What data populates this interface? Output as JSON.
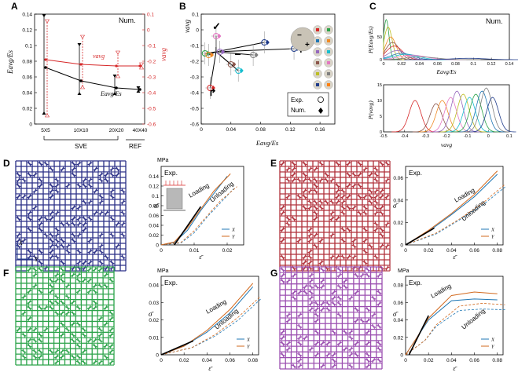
{
  "panels": {
    "A": {
      "letter": "A",
      "legend": "Num.",
      "y_left_label": "Eavg/Es",
      "y_right_label": "νavg",
      "series_labels": {
        "nu": "νavg",
        "e": "Eavg/Es"
      },
      "x_ticks": [
        "5X5",
        "10X10",
        "20X20",
        "40X40"
      ],
      "group_labels": [
        "SVE",
        "REF"
      ],
      "y_left_ticks": [
        "0",
        "0.02",
        "0.04",
        "0.06",
        "0.08",
        "0.1",
        "0.12",
        "0.14"
      ],
      "y_right_ticks": [
        "-0.6",
        "-0.5",
        "-0.4",
        "-0.3",
        "-0.2",
        "-0.1",
        "0",
        "0.1"
      ],
      "colors": {
        "e": "#000000",
        "nu": "#d62728"
      }
    },
    "B": {
      "letter": "B",
      "y_label": "νavg",
      "x_label": "Eavg/Es",
      "legend_exp": "Exp.",
      "legend_num": "Num.",
      "x_ticks": [
        "0",
        "0.04",
        "0.08",
        "0.12",
        "0.16"
      ],
      "y_ticks": [
        "-0.6",
        "-0.5",
        "-0.4",
        "-0.3",
        "-0.2",
        "-0.1",
        "0",
        "0.1"
      ]
    },
    "C": {
      "letter": "C",
      "legend": "Num.",
      "top_y_label": "P(Eavg/Es)",
      "top_x_label": "Eavg/Es",
      "top_x_ticks": [
        "0",
        "0.02",
        "0.04",
        "0.06",
        "0.08",
        "0.1",
        "0.12",
        "0.14"
      ],
      "top_y_ticks": [
        "0",
        "50"
      ],
      "bottom_y_label": "P(νavg)",
      "bottom_x_label": "νavg",
      "bottom_x_ticks": [
        "-0.5",
        "-0.4",
        "-0.3",
        "-0.2",
        "-0.1",
        "0",
        "0.1"
      ],
      "bottom_y_ticks": [
        "0",
        "5",
        "10",
        "15"
      ]
    },
    "D": {
      "letter": "D",
      "unit": "MPa",
      "legend": "Exp.",
      "y_label": "σ̄",
      "x_label": "ε̄",
      "loading": "Loading",
      "unloading": "Unloading",
      "x_ticks": [
        "0",
        "0.01",
        "0.02"
      ],
      "y_ticks": [
        "0",
        "0.02",
        "0.04",
        "0.06",
        "0.08",
        "0.1",
        "0.12",
        "0.14"
      ],
      "series": [
        "X",
        "Y"
      ],
      "axis_x": "X",
      "axis_y": "Y",
      "lattice_color": "#2a2f86"
    },
    "E": {
      "letter": "E",
      "legend": "Exp.",
      "y_label": "σ̄",
      "x_label": "ε̄",
      "loading": "Loading",
      "unloading": "Unloading",
      "x_ticks": [
        "0",
        "0.02",
        "0.04",
        "0.06",
        "0.08"
      ],
      "y_ticks": [
        "0",
        "0.02",
        "0.04",
        "0.06"
      ],
      "series": [
        "X",
        "Y"
      ],
      "lattice_color": "#b0303a"
    },
    "F": {
      "letter": "F",
      "unit": "MPa",
      "legend": "Exp.",
      "y_label": "σ̄",
      "x_label": "ε̄",
      "loading": "Loading",
      "unloading": "Unloading",
      "x_ticks": [
        "0",
        "0.02",
        "0.04",
        "0.06",
        "0.08"
      ],
      "y_ticks": [
        "0",
        "0.01",
        "0.02",
        "0.03",
        "0.04"
      ],
      "series": [
        "X",
        "Y"
      ],
      "lattice_color": "#2ca34a"
    },
    "G": {
      "letter": "G",
      "unit": "MPa",
      "legend": "Exp.",
      "y_label": "σ̄",
      "x_label": "ε̄",
      "loading": "Loading",
      "unloading": "Unloading",
      "x_ticks": [
        "0",
        "0.02",
        "0.04",
        "0.06",
        "0.08"
      ],
      "y_ticks": [
        "0",
        "0.02",
        "0.04",
        "0.06",
        "0.08"
      ],
      "series": [
        "X",
        "Y"
      ],
      "lattice_color": "#9b4fb0"
    }
  },
  "chart_data": [
    {
      "id": "A",
      "type": "line",
      "categories": [
        "5X5",
        "10X10",
        "20X20",
        "40X40"
      ],
      "series": [
        {
          "name": "Eavg/Es",
          "axis": "left",
          "values": [
            0.072,
            0.055,
            0.046,
            0.044
          ],
          "err_low": [
            0.015,
            0.04,
            0.04,
            0.043
          ],
          "err_high": [
            0.137,
            0.1,
            0.06,
            0.045
          ]
        },
        {
          "name": "νavg",
          "axis": "right",
          "values": [
            -0.19,
            -0.22,
            -0.23,
            -0.23
          ],
          "err_low": [
            -0.54,
            -0.36,
            -0.29,
            -0.235
          ],
          "err_high": [
            0.05,
            -0.05,
            -0.15,
            -0.225
          ]
        }
      ],
      "ylim_left": [
        0,
        0.14
      ],
      "ylim_right": [
        -0.6,
        0.1
      ]
    },
    {
      "id": "B",
      "type": "scatter",
      "x": [
        0.005,
        0.01,
        0.012,
        0.02,
        0.025,
        0.04,
        0.05,
        0.07,
        0.085,
        0.125
      ],
      "y": [
        -0.15,
        -0.16,
        -0.37,
        -0.04,
        -0.14,
        -0.22,
        -0.26,
        -0.16,
        -0.08,
        -0.12
      ],
      "colors": [
        "#2ca34a",
        "#f08a24",
        "#d62728",
        "#e377c2",
        "#9467bd",
        "#8c564b",
        "#17becf",
        "#7f7f7f",
        "#1f3b8a",
        "#1f3b8a"
      ],
      "xlim": [
        0,
        0.18
      ],
      "ylim": [
        -0.6,
        0.1
      ]
    },
    {
      "id": "C-top",
      "type": "line",
      "peaks_x": [
        0.003,
        0.005,
        0.008,
        0.01,
        0.012,
        0.015,
        0.02,
        0.025,
        0.032,
        0.042,
        0.095
      ],
      "peaks_y": [
        88,
        72,
        50,
        38,
        30,
        20,
        14,
        12,
        10,
        6,
        3
      ],
      "xlim": [
        0,
        0.14
      ],
      "ylim": [
        0,
        100
      ]
    },
    {
      "id": "C-bottom",
      "type": "line",
      "peaks_x": [
        -0.35,
        -0.25,
        -0.22,
        -0.18,
        -0.15,
        -0.12,
        -0.09,
        -0.06,
        -0.03,
        -0.01,
        0.02
      ],
      "peaks_y": [
        10,
        9,
        10,
        11,
        13,
        12,
        11,
        12,
        13,
        14,
        11
      ],
      "xlim": [
        -0.5,
        0.1
      ],
      "ylim": [
        0,
        15
      ]
    },
    {
      "id": "D",
      "type": "line",
      "series": [
        {
          "name": "X",
          "x": [
            0,
            0.004,
            0.008,
            0.012,
            0.016,
            0.02
          ],
          "y": [
            0,
            0.005,
            0.03,
            0.07,
            0.105,
            0.14
          ]
        },
        {
          "name": "Y",
          "x": [
            0,
            0.004,
            0.008,
            0.012,
            0.016,
            0.021
          ],
          "y": [
            0,
            0.006,
            0.035,
            0.073,
            0.11,
            0.145
          ]
        },
        {
          "name": "Exp.",
          "x": [
            0.004,
            0.012
          ],
          "y": [
            0,
            0.078
          ]
        }
      ],
      "xlim": [
        0,
        0.025
      ],
      "ylim": [
        0,
        0.16
      ]
    },
    {
      "id": "E",
      "type": "line",
      "series": [
        {
          "name": "X",
          "x": [
            0,
            0.02,
            0.04,
            0.06,
            0.08
          ],
          "y": [
            0,
            0.012,
            0.027,
            0.043,
            0.063
          ]
        },
        {
          "name": "Y",
          "x": [
            0,
            0.02,
            0.04,
            0.06,
            0.08
          ],
          "y": [
            0,
            0.013,
            0.028,
            0.045,
            0.066
          ]
        },
        {
          "name": "Exp.",
          "x": [
            0,
            0.025
          ],
          "y": [
            0,
            0.015
          ]
        }
      ],
      "xlim": [
        0,
        0.085
      ],
      "ylim": [
        0,
        0.07
      ]
    },
    {
      "id": "F",
      "type": "line",
      "series": [
        {
          "name": "X",
          "x": [
            0,
            0.02,
            0.04,
            0.06,
            0.08
          ],
          "y": [
            0,
            0.005,
            0.013,
            0.024,
            0.039
          ]
        },
        {
          "name": "Y",
          "x": [
            0,
            0.02,
            0.04,
            0.06,
            0.08
          ],
          "y": [
            0,
            0.005,
            0.014,
            0.026,
            0.041
          ]
        },
        {
          "name": "Exp.",
          "x": [
            0,
            0.028
          ],
          "y": [
            0,
            0.008
          ]
        }
      ],
      "xlim": [
        0,
        0.085
      ],
      "ylim": [
        0,
        0.045
      ]
    },
    {
      "id": "G",
      "type": "line",
      "series": [
        {
          "name": "X",
          "x": [
            0,
            0.01,
            0.02,
            0.04,
            0.06,
            0.08
          ],
          "y": [
            0,
            0.02,
            0.04,
            0.062,
            0.064,
            0.063
          ]
        },
        {
          "name": "Y",
          "x": [
            0,
            0.01,
            0.02,
            0.04,
            0.06,
            0.08
          ],
          "y": [
            0,
            0.02,
            0.042,
            0.068,
            0.072,
            0.07
          ]
        },
        {
          "name": "Exp.",
          "x": [
            0.003,
            0.02
          ],
          "y": [
            0,
            0.045
          ]
        }
      ],
      "xlim": [
        0,
        0.085
      ],
      "ylim": [
        0,
        0.09
      ]
    }
  ]
}
